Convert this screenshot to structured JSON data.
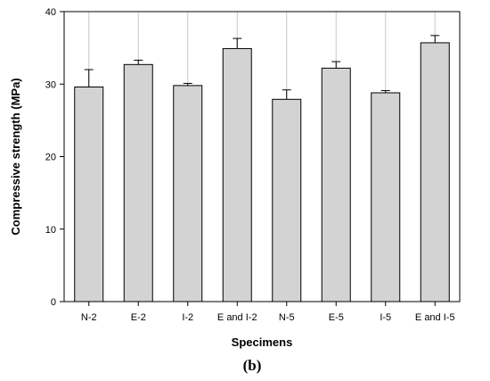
{
  "chart_data": {
    "type": "bar",
    "categories": [
      "N-2",
      "E-2",
      "I-2",
      "E and I-2",
      "N-5",
      "E-5",
      "I-5",
      "E and I-5"
    ],
    "values": [
      29.6,
      32.7,
      29.8,
      34.9,
      27.9,
      32.2,
      28.8,
      35.7
    ],
    "error": [
      2.4,
      0.6,
      0.3,
      1.4,
      1.3,
      0.9,
      0.3,
      1.0
    ],
    "xlabel": "Specimens",
    "ylabel": "Compressive strength (MPa)",
    "ylim": [
      0,
      40
    ],
    "yticks": [
      0,
      10,
      20,
      30,
      40
    ],
    "grid": "vertical",
    "bar_color": "#d3d3d3",
    "panel_label": "(b)"
  }
}
